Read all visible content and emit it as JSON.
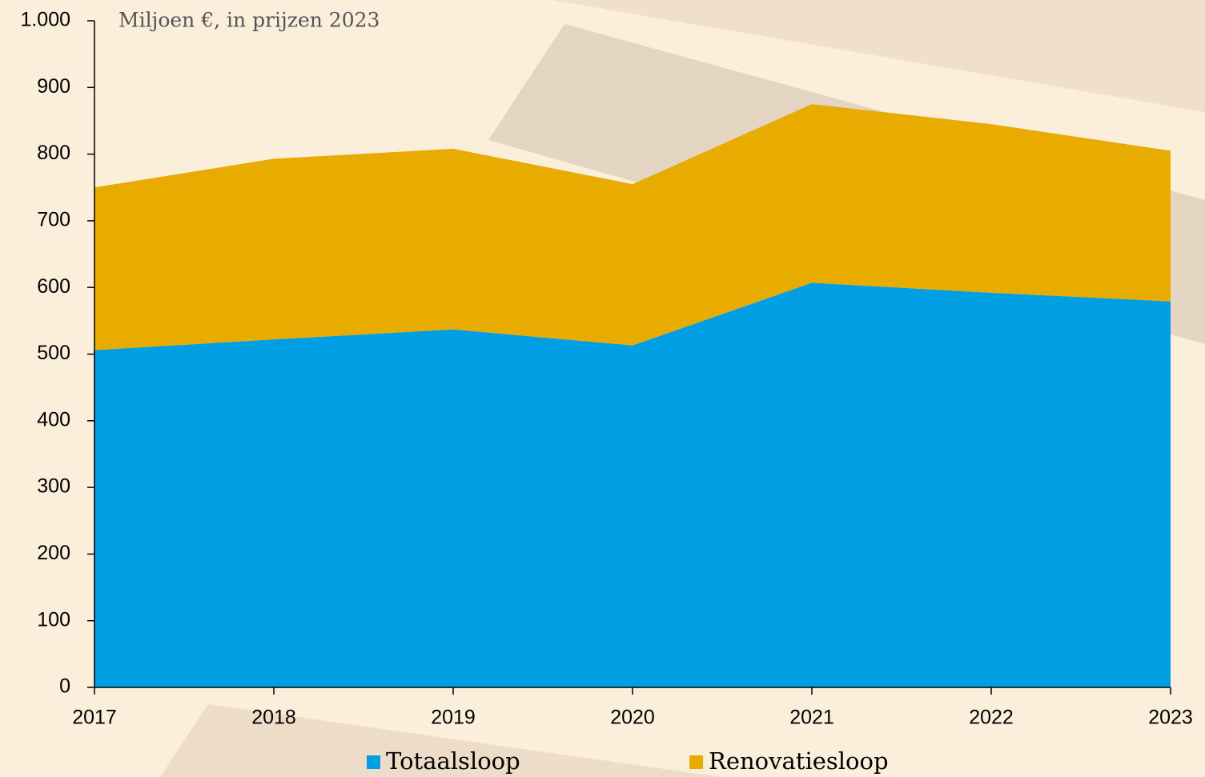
{
  "chart_data": {
    "type": "area",
    "stacked": true,
    "subtitle": "Miljoen €, in prijzen 2023",
    "x": [
      2017,
      2018,
      2019,
      2020,
      2021,
      2022,
      2023
    ],
    "series": [
      {
        "name": "Totaalsloop",
        "color": "#009fe3",
        "values": [
          506,
          522,
          537,
          513,
          607,
          592,
          579
        ]
      },
      {
        "name": "Renovatiesloop",
        "color": "#e8ab00",
        "values": [
          244,
          271,
          271,
          242,
          268,
          253,
          226
        ]
      }
    ],
    "xlim": [
      2017,
      2023
    ],
    "xticks": [
      2017,
      2018,
      2019,
      2020,
      2021,
      2022,
      2023
    ],
    "ylim": [
      0,
      1000
    ],
    "yticks": [
      0,
      100,
      200,
      300,
      400,
      500,
      600,
      700,
      800,
      900,
      {
        "value": 1000,
        "label": "1.000"
      }
    ],
    "legend": "bottom"
  }
}
